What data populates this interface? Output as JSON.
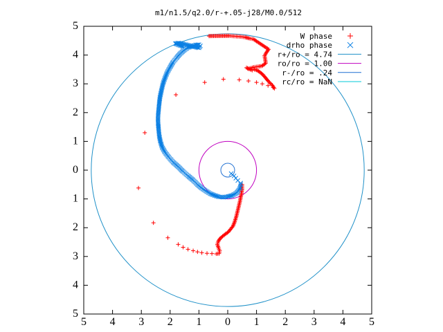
{
  "chart_data": {
    "type": "scatter",
    "title": "m1/n1.5/q2.0/r-+.05-j28/M0.0/512",
    "xlabel": "",
    "ylabel": "",
    "xlim": [
      -5,
      5
    ],
    "ylim": [
      -5,
      5
    ],
    "xticks": [
      -5,
      -4,
      -3,
      -2,
      -1,
      0,
      1,
      2,
      3,
      4,
      5
    ],
    "yticks": [
      -5,
      -4,
      -3,
      -2,
      -1,
      0,
      1,
      2,
      3,
      4,
      5
    ],
    "xtick_labels": [
      "5",
      "4",
      "3",
      "2",
      "1",
      "0",
      "1",
      "2",
      "3",
      "4",
      "5"
    ],
    "ytick_labels": [
      "5",
      "4",
      "3",
      "2",
      "1",
      "0",
      "1",
      "2",
      "3",
      "4",
      "5"
    ],
    "grid": false,
    "legend_position": "top-right",
    "series": [
      {
        "name": "W phase",
        "marker": "plus",
        "color": "#ff0000",
        "points": [
          [
            -3.1,
            -0.62
          ],
          [
            -2.58,
            -1.83
          ],
          [
            -2.08,
            -2.35
          ],
          [
            -1.72,
            -2.58
          ],
          [
            -1.55,
            -2.68
          ],
          [
            -1.38,
            -2.75
          ],
          [
            -1.2,
            -2.8
          ],
          [
            -1.05,
            -2.84
          ],
          [
            -0.9,
            -2.87
          ],
          [
            -0.72,
            -2.89
          ],
          [
            -0.55,
            -2.9
          ],
          [
            -0.4,
            -2.91
          ],
          [
            -0.3,
            -2.9
          ],
          [
            -0.28,
            -2.8
          ],
          [
            -0.32,
            -2.7
          ],
          [
            -0.36,
            -2.58
          ],
          [
            -0.33,
            -2.48
          ],
          [
            -0.27,
            -2.38
          ],
          [
            -0.18,
            -2.3
          ],
          [
            -0.08,
            -2.22
          ],
          [
            0.02,
            -2.15
          ],
          [
            0.1,
            -2.05
          ],
          [
            0.18,
            -1.95
          ],
          [
            0.24,
            -1.8
          ],
          [
            0.3,
            -1.6
          ],
          [
            0.36,
            -1.35
          ],
          [
            0.42,
            -1.1
          ],
          [
            0.47,
            -0.85
          ],
          [
            0.5,
            -0.65
          ],
          [
            0.5,
            -0.5
          ],
          [
            -2.88,
            1.3
          ],
          [
            -1.8,
            2.62
          ],
          [
            -0.8,
            3.05
          ],
          [
            -0.15,
            3.16
          ],
          [
            0.4,
            3.14
          ],
          [
            0.72,
            3.1
          ],
          [
            1.0,
            3.05
          ],
          [
            1.2,
            3.0
          ],
          [
            1.4,
            2.94
          ],
          [
            1.58,
            2.87
          ],
          [
            1.62,
            2.84
          ],
          [
            1.55,
            2.95
          ],
          [
            1.42,
            3.08
          ],
          [
            1.32,
            3.2
          ],
          [
            1.22,
            3.32
          ],
          [
            1.1,
            3.42
          ],
          [
            1.0,
            3.48
          ],
          [
            0.92,
            3.5
          ],
          [
            0.85,
            3.47
          ],
          [
            0.65,
            3.56
          ],
          [
            0.72,
            3.52
          ],
          [
            0.9,
            3.58
          ],
          [
            1.05,
            3.6
          ],
          [
            1.18,
            3.62
          ],
          [
            1.25,
            3.66
          ],
          [
            1.32,
            3.72
          ],
          [
            1.3,
            3.85
          ],
          [
            1.28,
            3.98
          ],
          [
            1.35,
            4.1
          ],
          [
            1.42,
            4.2
          ],
          [
            1.3,
            4.28
          ],
          [
            1.15,
            4.38
          ],
          [
            1.0,
            4.48
          ],
          [
            0.9,
            4.55
          ],
          [
            0.75,
            4.58
          ],
          [
            0.6,
            4.62
          ],
          [
            0.45,
            4.64
          ],
          [
            0.3,
            4.65
          ],
          [
            0.15,
            4.66
          ],
          [
            0.05,
            4.67
          ],
          [
            -0.65,
            4.66
          ]
        ]
      },
      {
        "name": "drho phase",
        "marker": "cross",
        "color": "#0a7fe3",
        "points": [
          [
            0.45,
            -0.45
          ],
          [
            0.45,
            -0.55
          ],
          [
            0.4,
            -0.68
          ],
          [
            0.3,
            -0.8
          ],
          [
            0.15,
            -0.88
          ],
          [
            0.0,
            -0.92
          ],
          [
            -0.15,
            -0.94
          ],
          [
            -0.3,
            -0.93
          ],
          [
            -0.45,
            -0.88
          ],
          [
            -0.6,
            -0.82
          ],
          [
            -0.75,
            -0.73
          ],
          [
            -0.9,
            -0.63
          ],
          [
            -1.05,
            -0.5
          ],
          [
            -1.2,
            -0.35
          ],
          [
            -1.38,
            -0.2
          ],
          [
            -1.55,
            -0.05
          ],
          [
            -1.72,
            0.12
          ],
          [
            -1.9,
            0.28
          ],
          [
            -2.05,
            0.45
          ],
          [
            -2.18,
            0.62
          ],
          [
            -2.28,
            0.8
          ],
          [
            -2.34,
            1.0
          ],
          [
            -2.38,
            1.2
          ],
          [
            -2.4,
            1.42
          ],
          [
            -2.42,
            1.65
          ],
          [
            -2.42,
            1.88
          ],
          [
            -2.4,
            2.1
          ],
          [
            -2.38,
            2.32
          ],
          [
            -2.35,
            2.55
          ],
          [
            -2.3,
            2.78
          ],
          [
            -2.25,
            3.0
          ],
          [
            -2.18,
            3.2
          ],
          [
            -2.1,
            3.4
          ],
          [
            -2.0,
            3.58
          ],
          [
            -1.9,
            3.75
          ],
          [
            -1.78,
            3.9
          ],
          [
            -1.65,
            4.05
          ],
          [
            -1.5,
            4.18
          ],
          [
            -1.38,
            4.26
          ],
          [
            -1.25,
            4.3
          ],
          [
            -1.12,
            4.35
          ],
          [
            -1.0,
            4.36
          ],
          [
            -0.95,
            4.32
          ],
          [
            -1.0,
            4.25
          ],
          [
            -1.12,
            4.28
          ],
          [
            -1.3,
            4.32
          ],
          [
            -1.52,
            4.38
          ],
          [
            -1.7,
            4.42
          ],
          [
            -1.82,
            4.4
          ],
          [
            -1.7,
            4.35
          ],
          [
            -1.55,
            4.3
          ],
          [
            0.12,
            -0.12
          ],
          [
            0.22,
            -0.2
          ],
          [
            0.28,
            -0.28
          ],
          [
            0.35,
            -0.36
          ]
        ]
      },
      {
        "name": "r+/ro = 4.74",
        "type": "circle",
        "radius": 4.74,
        "color": "#1e90c8"
      },
      {
        "name": "ro/ro = 1.00",
        "type": "circle",
        "radius": 1.0,
        "color": "#c000c0"
      },
      {
        "name": "r-/ro = .24",
        "type": "circle",
        "radius": 0.24,
        "color": "#1f6fd1"
      },
      {
        "name": "rc/ro = NaN",
        "type": "circle",
        "radius": null,
        "color": "#00c8d8"
      }
    ]
  }
}
